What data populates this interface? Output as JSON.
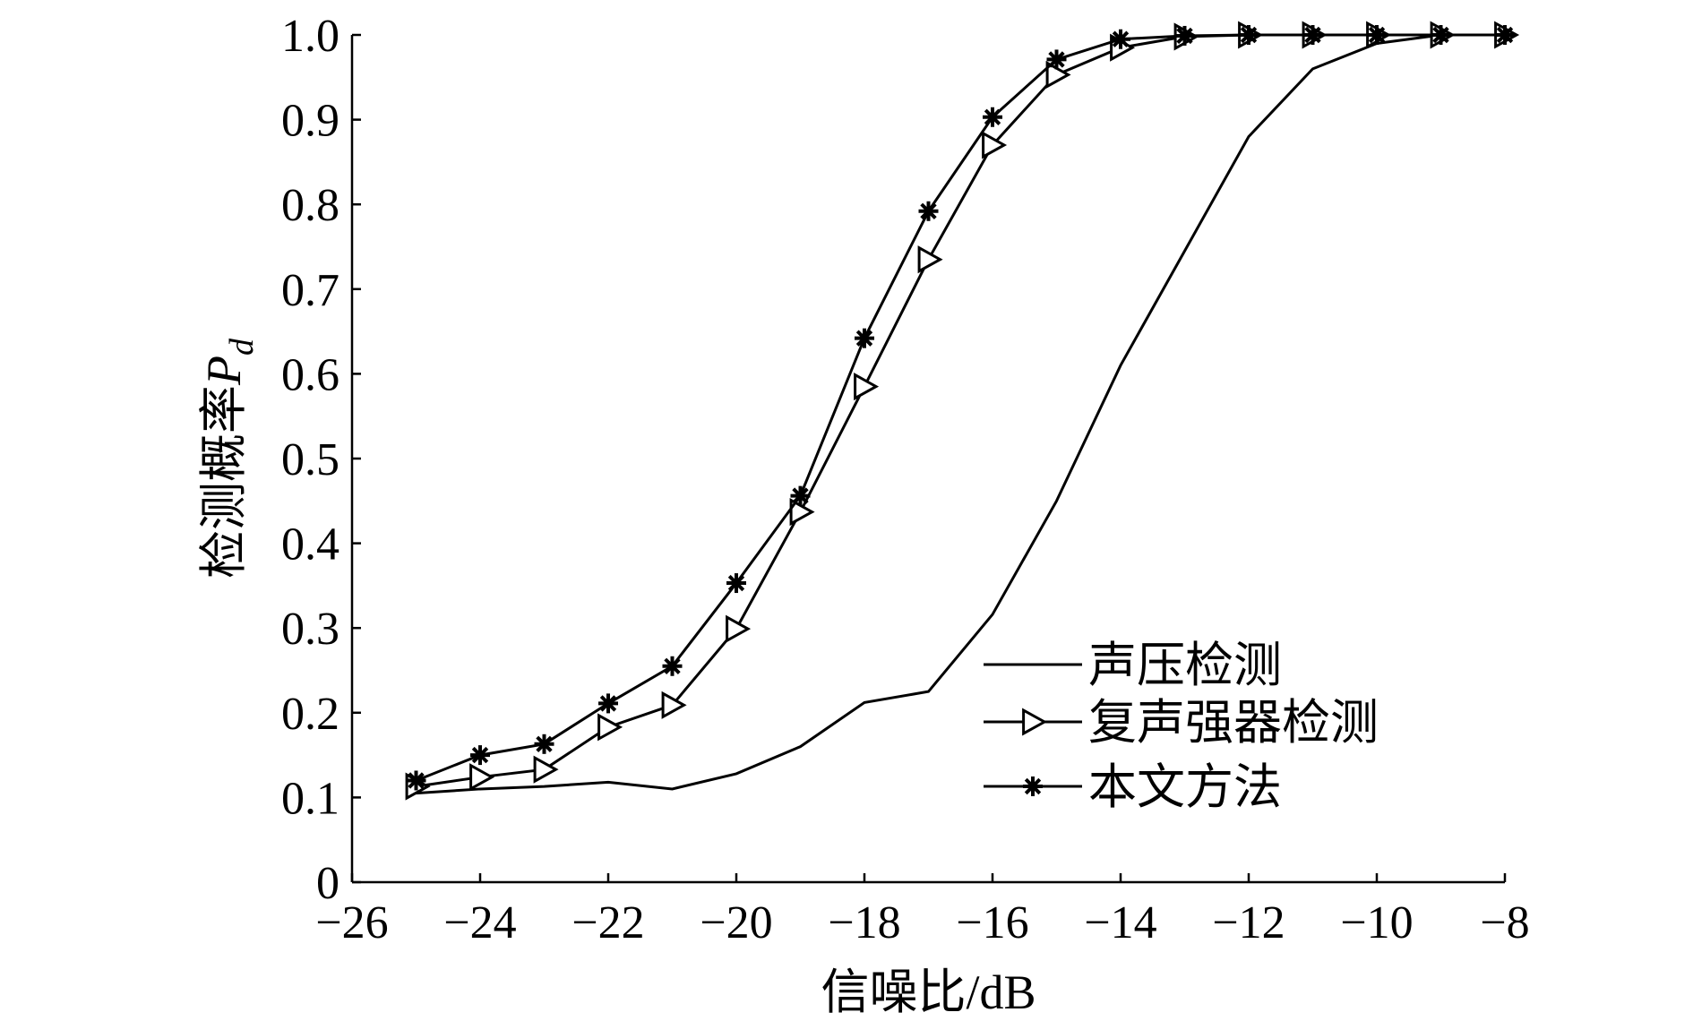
{
  "chart_data": {
    "type": "line",
    "title": "",
    "xlabel": "信噪比/dB",
    "ylabel": "检测概率",
    "ylabel_symbol": "P",
    "ylabel_subscript": "d",
    "xlim": [
      -26,
      -8
    ],
    "ylim": [
      0,
      1.0
    ],
    "xticks": [
      -26,
      -24,
      -22,
      -20,
      -18,
      -16,
      -14,
      -12,
      -10,
      -8
    ],
    "xtick_labels": [
      "−26",
      "−24",
      "−22",
      "−20",
      "−18",
      "−16",
      "−14",
      "−12",
      "−10",
      "−8"
    ],
    "yticks": [
      0,
      0.1,
      0.2,
      0.3,
      0.4,
      0.5,
      0.6,
      0.7,
      0.8,
      0.9,
      1.0
    ],
    "ytick_labels": [
      "0",
      "0.1",
      "0.2",
      "0.3",
      "0.4",
      "0.5",
      "0.6",
      "0.7",
      "0.8",
      "0.9",
      "1.0"
    ],
    "grid": false,
    "legend_position": "lower-right",
    "series": [
      {
        "name": "声压检测",
        "marker": "none",
        "x": [
          -25,
          -24,
          -23,
          -22,
          -21,
          -20,
          -19,
          -18,
          -17,
          -16,
          -15,
          -14,
          -13,
          -12,
          -11,
          -10,
          -9,
          -8
        ],
        "y": [
          0.105,
          0.11,
          0.113,
          0.118,
          0.11,
          0.128,
          0.16,
          0.212,
          0.225,
          0.316,
          0.45,
          0.61,
          0.745,
          0.88,
          0.96,
          0.99,
          1.0,
          1.0
        ]
      },
      {
        "name": "复声强器检测",
        "marker": "triangle-right",
        "x": [
          -25,
          -24,
          -23,
          -22,
          -21,
          -20,
          -19,
          -18,
          -17,
          -16,
          -15,
          -14,
          -13,
          -12,
          -11,
          -10,
          -9,
          -8
        ],
        "y": [
          0.113,
          0.124,
          0.133,
          0.183,
          0.209,
          0.299,
          0.437,
          0.585,
          0.735,
          0.87,
          0.953,
          0.985,
          0.998,
          1.0,
          1.0,
          1.0,
          1.0,
          1.0
        ]
      },
      {
        "name": "本文方法",
        "marker": "asterisk",
        "x": [
          -25,
          -24,
          -23,
          -22,
          -21,
          -20,
          -19,
          -18,
          -17,
          -16,
          -15,
          -14,
          -13,
          -12,
          -11,
          -10,
          -9,
          -8
        ],
        "y": [
          0.12,
          0.15,
          0.163,
          0.211,
          0.255,
          0.353,
          0.456,
          0.642,
          0.792,
          0.903,
          0.971,
          0.995,
          0.999,
          1.0,
          1.0,
          1.0,
          1.0,
          1.0
        ]
      }
    ]
  }
}
